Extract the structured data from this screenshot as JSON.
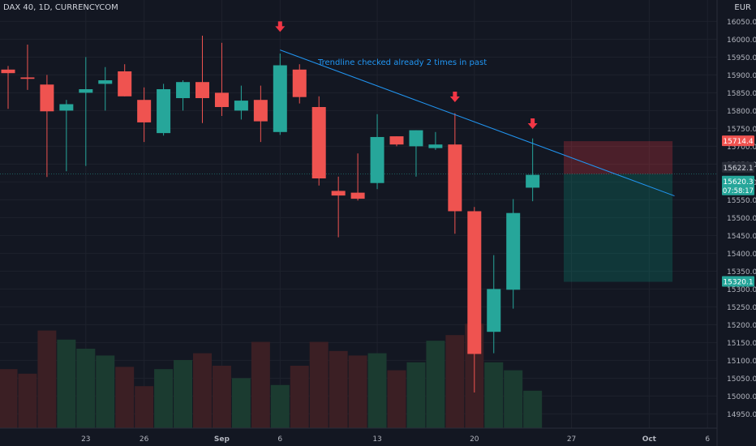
{
  "header": {
    "symbol": "DAX 40, 1D, CURRENCYCOM",
    "currency": "EUR"
  },
  "annotation": "Trendline checked already 2 times in past",
  "price_labels": {
    "stop": "15714.4",
    "last": "15622.1",
    "close": "15620.3",
    "countdown": "07:58:17",
    "target": "15320.1"
  },
  "colors": {
    "up": "#26a69a",
    "down": "#ef5350",
    "background": "#131722",
    "trendline": "#2196f3",
    "arrow": "#f23645"
  },
  "chart_data": {
    "type": "candlestick",
    "ylim": [
      14910,
      16110
    ],
    "y_ticks": [
      14950,
      15000,
      15050,
      15100,
      15150,
      15200,
      15250,
      15300,
      15350,
      15400,
      15450,
      15500,
      15550,
      15600,
      15650,
      15700,
      15750,
      15800,
      15850,
      15900,
      15950,
      16000,
      16050
    ],
    "x_ticks": [
      {
        "i": 4,
        "label": "23"
      },
      {
        "i": 7,
        "label": "26"
      },
      {
        "i": 11,
        "label": "Sep"
      },
      {
        "i": 14,
        "label": "6"
      },
      {
        "i": 19,
        "label": "13"
      },
      {
        "i": 24,
        "label": "20"
      },
      {
        "i": 29,
        "label": "27"
      },
      {
        "i": 33,
        "label": "Oct"
      },
      {
        "i": 36,
        "label": "6"
      }
    ],
    "candles": [
      {
        "o": 15915,
        "h": 15925,
        "l": 15805,
        "c": 15905
      },
      {
        "o": 15893,
        "h": 15985,
        "l": 15858,
        "c": 15889
      },
      {
        "o": 15873,
        "h": 15900,
        "l": 15614,
        "c": 15798
      },
      {
        "o": 15800,
        "h": 15830,
        "l": 15630,
        "c": 15818
      },
      {
        "o": 15850,
        "h": 15950,
        "l": 15645,
        "c": 15860
      },
      {
        "o": 15875,
        "h": 15922,
        "l": 15800,
        "c": 15885
      },
      {
        "o": 15910,
        "h": 15930,
        "l": 15840,
        "c": 15840
      },
      {
        "o": 15830,
        "h": 15865,
        "l": 15712,
        "c": 15767
      },
      {
        "o": 15737,
        "h": 15875,
        "l": 15730,
        "c": 15860
      },
      {
        "o": 15835,
        "h": 15885,
        "l": 15800,
        "c": 15880
      },
      {
        "o": 15880,
        "h": 16010,
        "l": 15765,
        "c": 15835
      },
      {
        "o": 15850,
        "h": 15990,
        "l": 15785,
        "c": 15810
      },
      {
        "o": 15800,
        "h": 15870,
        "l": 15775,
        "c": 15828
      },
      {
        "o": 15830,
        "h": 15870,
        "l": 15712,
        "c": 15770
      },
      {
        "o": 15740,
        "h": 15960,
        "l": 15732,
        "c": 15927
      },
      {
        "o": 15915,
        "h": 15930,
        "l": 15820,
        "c": 15838
      },
      {
        "o": 15810,
        "h": 15840,
        "l": 15590,
        "c": 15610
      },
      {
        "o": 15575,
        "h": 15615,
        "l": 15445,
        "c": 15562
      },
      {
        "o": 15570,
        "h": 15680,
        "l": 15548,
        "c": 15553
      },
      {
        "o": 15597,
        "h": 15790,
        "l": 15580,
        "c": 15726
      },
      {
        "o": 15728,
        "h": 15728,
        "l": 15700,
        "c": 15705
      },
      {
        "o": 15700,
        "h": 15745,
        "l": 15615,
        "c": 15745
      },
      {
        "o": 15695,
        "h": 15740,
        "l": 15690,
        "c": 15705
      },
      {
        "o": 15705,
        "h": 15793,
        "l": 15455,
        "c": 15518
      },
      {
        "o": 15518,
        "h": 15530,
        "l": 15010,
        "c": 15118
      },
      {
        "o": 15180,
        "h": 15395,
        "l": 15120,
        "c": 15300
      },
      {
        "o": 15298,
        "h": 15552,
        "l": 15245,
        "c": 15513
      },
      {
        "o": 15584,
        "h": 15722,
        "l": 15546,
        "c": 15620
      }
    ],
    "volumes": [
      52,
      48,
      86,
      78,
      70,
      64,
      54,
      37,
      52,
      60,
      66,
      55,
      44,
      76,
      38,
      55,
      76,
      68,
      64,
      66,
      51,
      58,
      77,
      82,
      92,
      58,
      51,
      33
    ],
    "trendline": {
      "from": {
        "i": 14,
        "price": 15970
      },
      "to": {
        "i": 34.3,
        "price": 15561
      }
    },
    "position": {
      "from": 28.6,
      "to": 34.2,
      "entry": 15622.1,
      "stop": 15714.4,
      "target": 15320.1
    },
    "arrows": [
      {
        "i": 14,
        "price": 16032
      },
      {
        "i": 23,
        "price": 15835
      },
      {
        "i": 27,
        "price": 15760
      }
    ]
  }
}
